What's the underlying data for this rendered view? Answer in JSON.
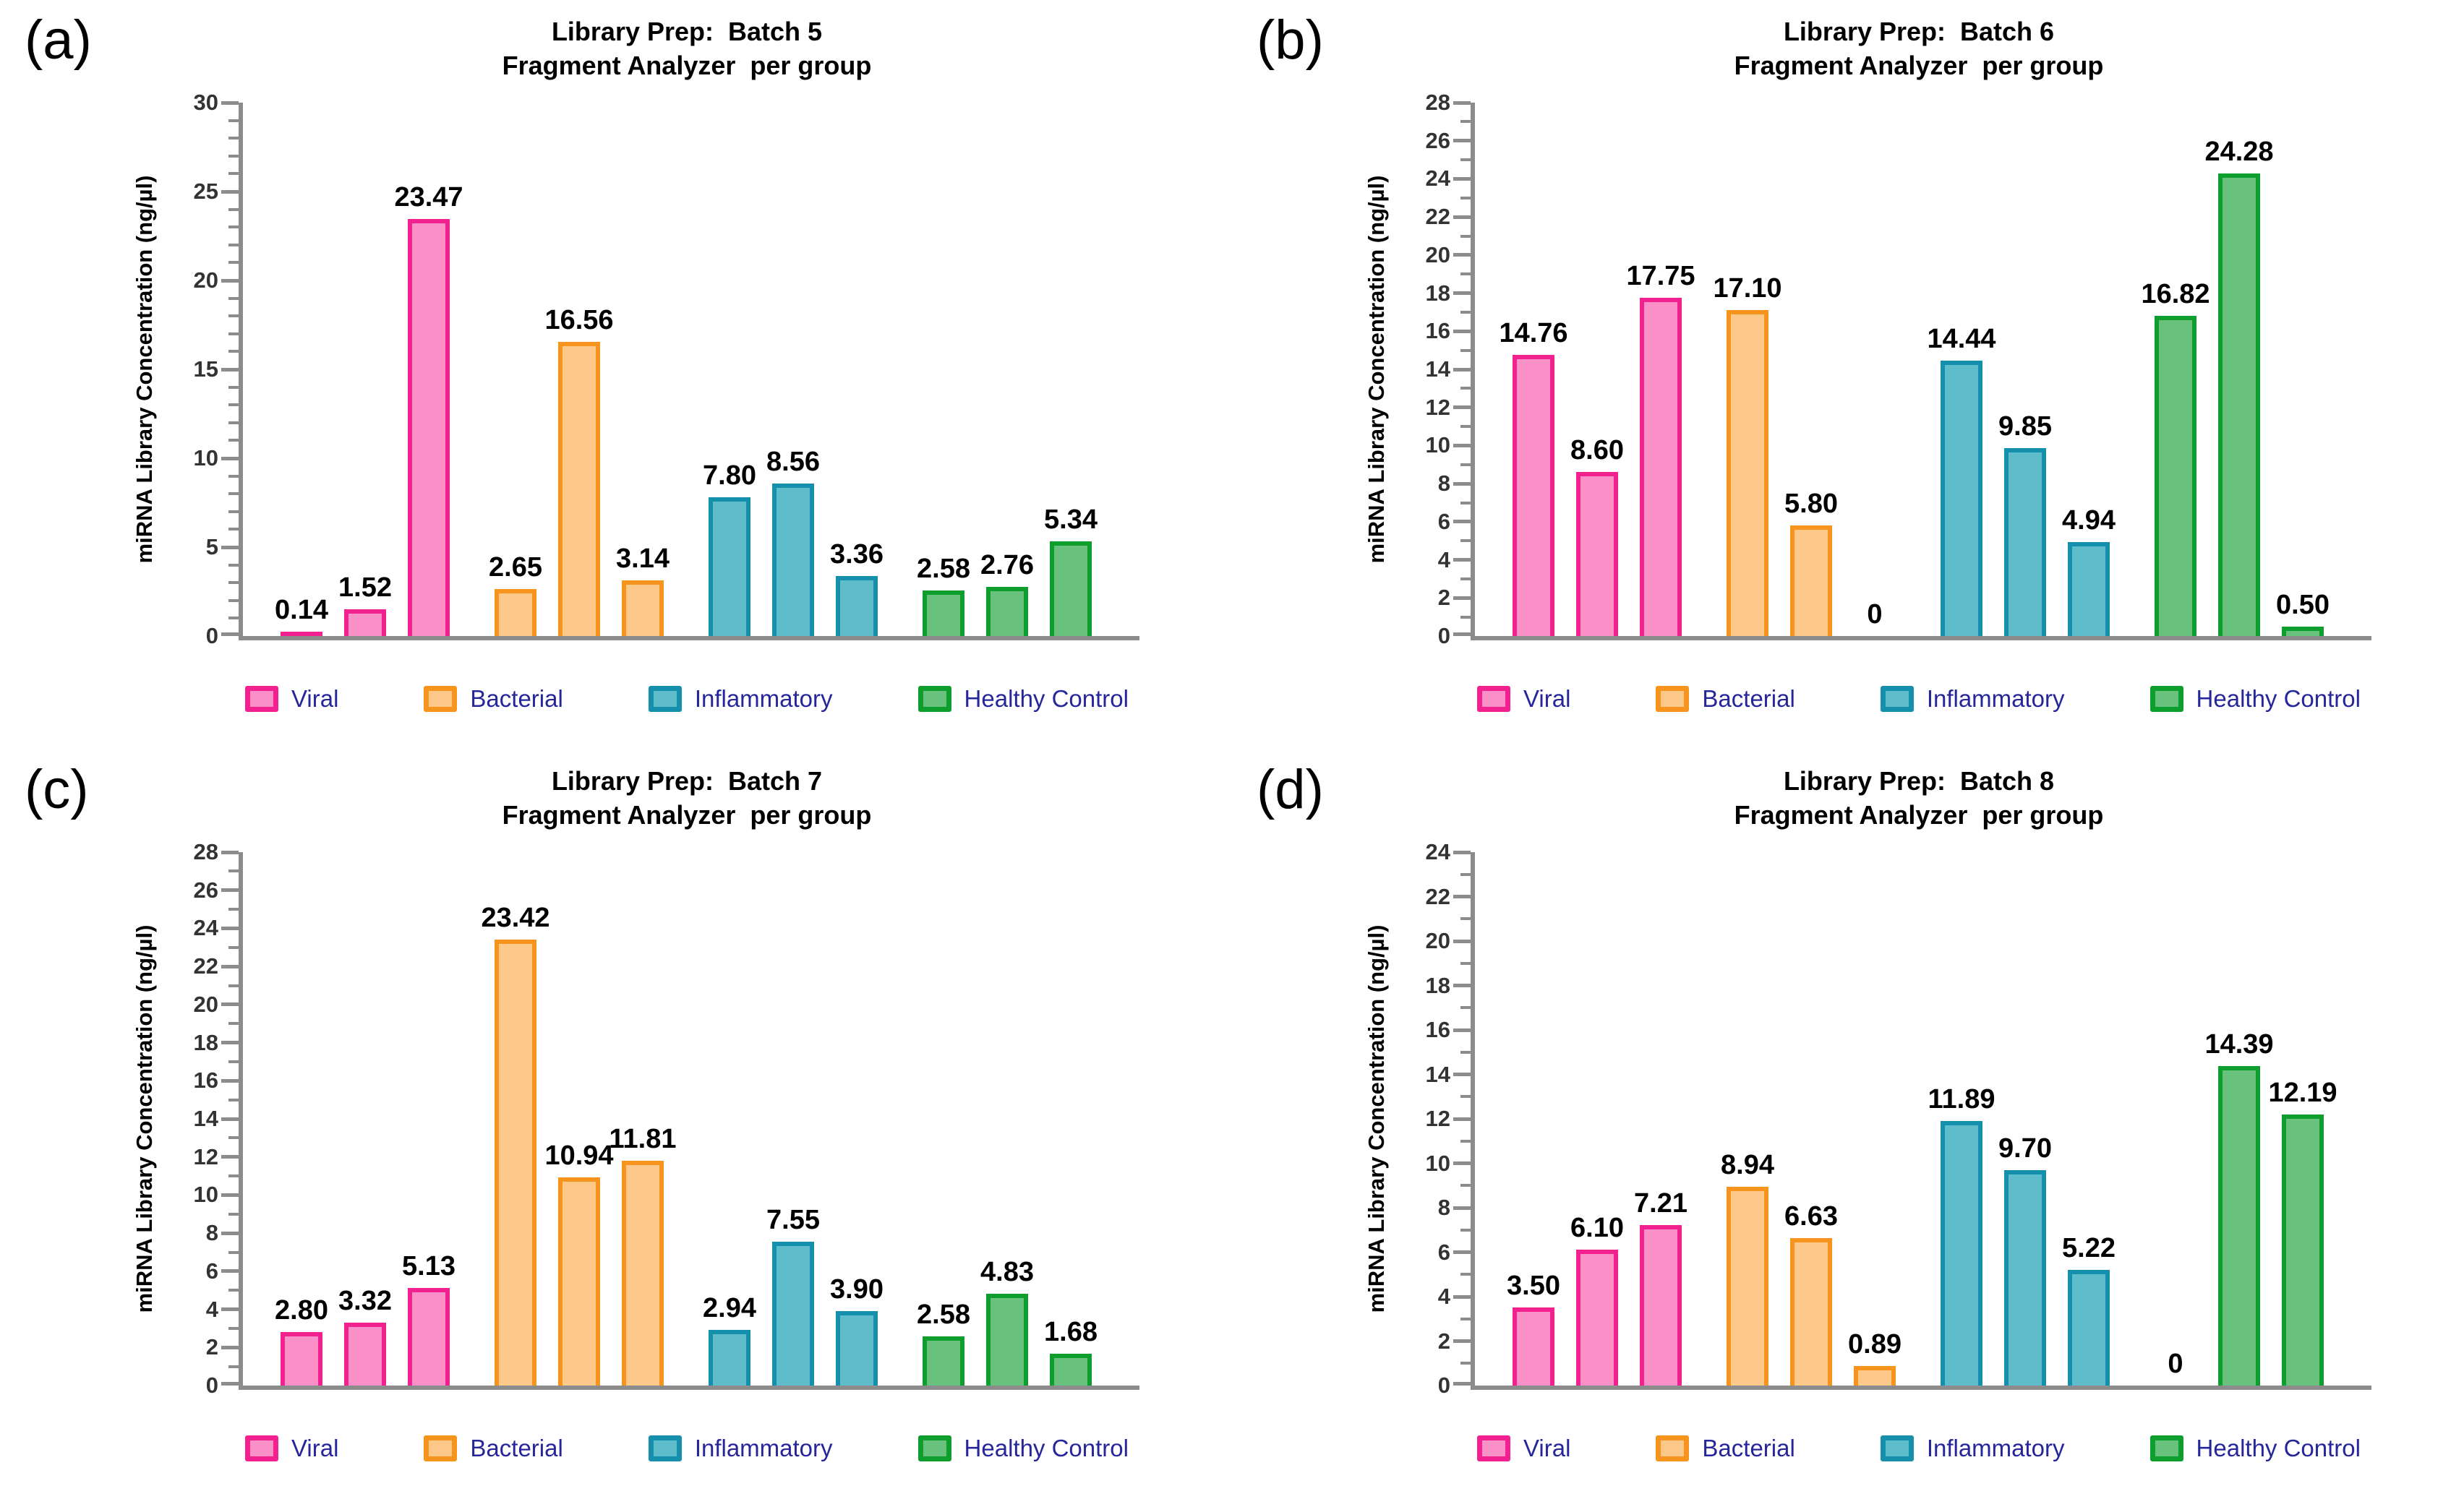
{
  "axis": {
    "color": "#8C8C8C",
    "tick_label_color": "#333333"
  },
  "legend": {
    "text_color": "#26269B",
    "items": [
      {
        "label": "Viral",
        "fill": "#FB8FC7",
        "border": "#F2218F"
      },
      {
        "label": "Bacterial",
        "fill": "#FCC98B",
        "border": "#F7941E"
      },
      {
        "label": "Inflammatory",
        "fill": "#5FBCCB",
        "border": "#1590AC"
      },
      {
        "label": "Healthy Control",
        "fill": "#69C17E",
        "border": "#0D9E2E"
      }
    ]
  },
  "chart_data": [
    {
      "type": "bar",
      "panel_letter": "(a)",
      "title": "Library Prep:  Batch 5",
      "subtitle": "Fragment Analyzer  per group",
      "ylabel": "miRNA Library Concentration (ng/µl)",
      "ylim": [
        0,
        30
      ],
      "ytick_major": 5,
      "ytick_minor": 1,
      "grid": false,
      "legend_position": "bottom",
      "series": [
        {
          "name": "Viral",
          "values": [
            0.14,
            1.52,
            23.47
          ],
          "labels": [
            "0.14",
            "1.52",
            "23.47"
          ]
        },
        {
          "name": "Bacterial",
          "values": [
            2.65,
            16.56,
            3.14
          ],
          "labels": [
            "2.65",
            "16.56",
            "3.14"
          ]
        },
        {
          "name": "Inflammatory",
          "values": [
            7.8,
            8.56,
            3.36
          ],
          "labels": [
            "7.80",
            "8.56",
            "3.36"
          ]
        },
        {
          "name": "Healthy Control",
          "values": [
            2.58,
            2.76,
            5.34
          ],
          "labels": [
            "2.58",
            "2.76",
            "5.34"
          ]
        }
      ]
    },
    {
      "type": "bar",
      "panel_letter": "(b)",
      "title": "Library Prep:  Batch 6",
      "subtitle": "Fragment Analyzer  per group",
      "ylabel": "miRNA Library Concentration (ng/µl)",
      "ylim": [
        0,
        28
      ],
      "ytick_major": 2,
      "ytick_minor": 1,
      "grid": false,
      "legend_position": "bottom",
      "series": [
        {
          "name": "Viral",
          "values": [
            14.76,
            8.6,
            17.75
          ],
          "labels": [
            "14.76",
            "8.60",
            "17.75"
          ]
        },
        {
          "name": "Bacterial",
          "values": [
            17.1,
            5.8,
            0
          ],
          "labels": [
            "17.10",
            "5.80",
            "0"
          ]
        },
        {
          "name": "Inflammatory",
          "values": [
            14.44,
            9.85,
            4.94
          ],
          "labels": [
            "14.44",
            "9.85",
            "4.94"
          ]
        },
        {
          "name": "Healthy Control",
          "values": [
            16.82,
            24.28,
            0.5
          ],
          "labels": [
            "16.82",
            "24.28",
            "0.50"
          ]
        }
      ]
    },
    {
      "type": "bar",
      "panel_letter": "(c)",
      "title": "Library Prep:  Batch 7",
      "subtitle": "Fragment Analyzer  per group",
      "ylabel": "miRNA Library Concentration (ng/µl)",
      "ylim": [
        0,
        28
      ],
      "ytick_major": 2,
      "ytick_minor": 1,
      "grid": false,
      "legend_position": "bottom",
      "series": [
        {
          "name": "Viral",
          "values": [
            2.8,
            3.32,
            5.13
          ],
          "labels": [
            "2.80",
            "3.32",
            "5.13"
          ]
        },
        {
          "name": "Bacterial",
          "values": [
            23.42,
            10.94,
            11.81
          ],
          "labels": [
            "23.42",
            "10.94",
            "11.81"
          ]
        },
        {
          "name": "Inflammatory",
          "values": [
            2.94,
            7.55,
            3.9
          ],
          "labels": [
            "2.94",
            "7.55",
            "3.90"
          ]
        },
        {
          "name": "Healthy Control",
          "values": [
            2.58,
            4.83,
            1.68
          ],
          "labels": [
            "2.58",
            "4.83",
            "1.68"
          ]
        }
      ]
    },
    {
      "type": "bar",
      "panel_letter": "(d)",
      "title": "Library Prep:  Batch 8",
      "subtitle": "Fragment Analyzer  per group",
      "ylabel": "miRNA Library Concentration (ng/µl)",
      "ylim": [
        0,
        24
      ],
      "ytick_major": 2,
      "ytick_minor": 1,
      "grid": false,
      "legend_position": "bottom",
      "series": [
        {
          "name": "Viral",
          "values": [
            3.5,
            6.1,
            7.21
          ],
          "labels": [
            "3.50",
            "6.10",
            "7.21"
          ]
        },
        {
          "name": "Bacterial",
          "values": [
            8.94,
            6.63,
            0.89
          ],
          "labels": [
            "8.94",
            "6.63",
            "0.89"
          ]
        },
        {
          "name": "Inflammatory",
          "values": [
            11.89,
            9.7,
            5.22
          ],
          "labels": [
            "11.89",
            "9.70",
            "5.22"
          ]
        },
        {
          "name": "Healthy Control",
          "values": [
            0,
            14.39,
            12.19
          ],
          "labels": [
            "0",
            "14.39",
            "12.19"
          ]
        }
      ]
    }
  ]
}
